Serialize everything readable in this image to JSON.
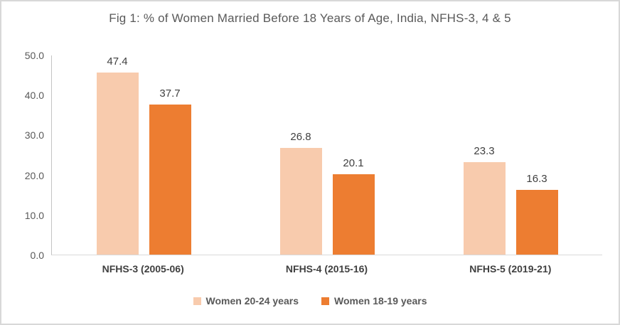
{
  "chart_data": {
    "type": "bar",
    "title": "Fig 1: % of Women Married Before 18 Years of Age, India, NFHS-3, 4 & 5",
    "categories": [
      "NFHS-3 (2005-06)",
      "NFHS-4 (2015-16)",
      "NFHS-5 (2019-21)"
    ],
    "series": [
      {
        "name": "Women 20-24 years",
        "color": "#F8CBAD",
        "values": [
          47.4,
          26.8,
          23.3
        ]
      },
      {
        "name": "Women 18-19 years",
        "color": "#ED7D31",
        "values": [
          37.7,
          20.1,
          16.3
        ]
      }
    ],
    "ylim": [
      0,
      50
    ],
    "ytick_step": 10,
    "ytick_format_decimals": 1,
    "value_label_decimals": 1,
    "grid": false,
    "legend_position": "bottom",
    "colors": {
      "border": "#D8D8D8",
      "axis_line": "#C3C3C3",
      "baseline": "#D9D9D9",
      "title_text": "#595959",
      "tick_text": "#595959",
      "label_text": "#404040"
    }
  }
}
